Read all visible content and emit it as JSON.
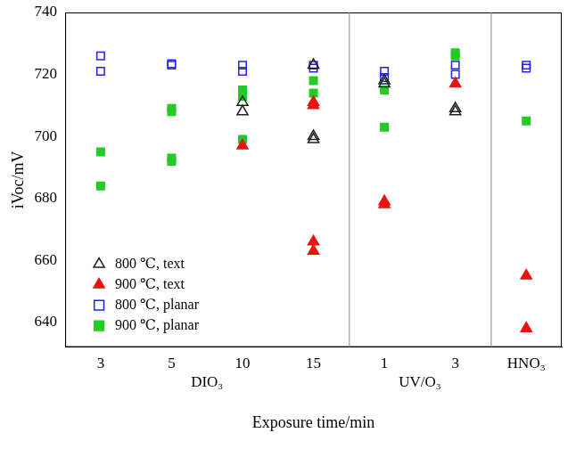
{
  "chart_data": {
    "type": "scatter",
    "x_label": "Exposure time/min",
    "y_label": "iVoc/mV",
    "categories": [
      "3",
      "5",
      "10",
      "15",
      "1",
      "3",
      "HNO₃"
    ],
    "groups": [
      {
        "label": "DIO₃",
        "start": 0,
        "end": 3
      },
      {
        "label": "UV/O₃",
        "start": 4,
        "end": 5
      }
    ],
    "ylim": [
      632,
      740
    ],
    "yticks": [
      640,
      660,
      680,
      700,
      720,
      740
    ],
    "grid": false,
    "legend": "lower left",
    "series": [
      {
        "name": "800 ℃, text",
        "color": "#222222",
        "marker": "triangle_open",
        "values": [
          [],
          [],
          [
            711,
            708
          ],
          [
            723,
            700,
            699
          ],
          [
            718,
            717
          ],
          [
            709,
            708
          ],
          []
        ]
      },
      {
        "name": "900 ℃, text",
        "color": "#ee1111",
        "marker": "triangle_filled",
        "values": [
          [],
          [],
          [
            697
          ],
          [
            711,
            710,
            666,
            663
          ],
          [
            679,
            678
          ],
          [
            717
          ],
          [
            655,
            638
          ]
        ]
      },
      {
        "name": "800 ℃, planar",
        "color": "#2222ee",
        "marker": "square_open",
        "values": [
          [
            726,
            721
          ],
          [
            723.5,
            723
          ],
          [
            723,
            721
          ],
          [
            723,
            722
          ],
          [
            721,
            719
          ],
          [
            723,
            720
          ],
          [
            723,
            722
          ]
        ]
      },
      {
        "name": "900 ℃, planar",
        "color": "#22cc22",
        "marker": "square_filled",
        "values": [
          [
            695,
            684
          ],
          [
            709,
            708,
            693,
            692
          ],
          [
            715,
            713,
            699
          ],
          [
            718,
            714
          ],
          [
            715,
            703
          ],
          [
            727,
            726
          ],
          [
            705
          ]
        ]
      }
    ]
  }
}
